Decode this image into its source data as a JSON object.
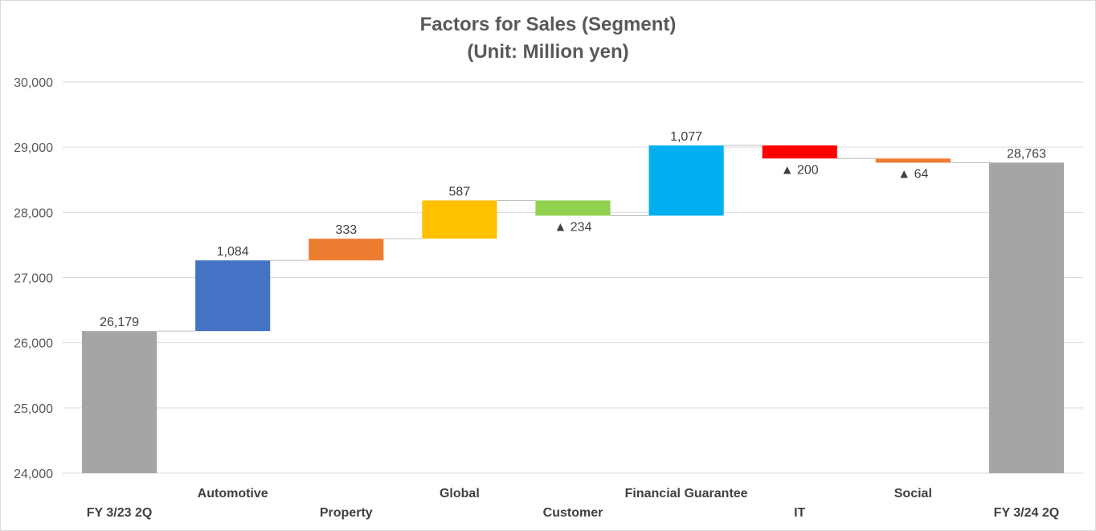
{
  "chart_data": {
    "type": "bar",
    "subtype": "waterfall",
    "title": "Factors for Sales (Segment)",
    "subtitle": "(Unit: Million yen)",
    "categories": [
      "FY 3/23 2Q",
      "Automotive",
      "Property",
      "Global",
      "Customer",
      "Financial Guarantee",
      "IT",
      "Social",
      "FY 3/24 2Q"
    ],
    "kinds": [
      "total",
      "delta",
      "delta",
      "delta",
      "delta",
      "delta",
      "delta",
      "delta",
      "total"
    ],
    "values": [
      26179,
      1084,
      333,
      587,
      -234,
      1077,
      -200,
      -64,
      28763
    ],
    "data_labels": [
      "26,179",
      "1,084",
      "333",
      "587",
      "▲ 234",
      "1,077",
      "▲ 200",
      "▲ 64",
      "28,763"
    ],
    "colors": [
      "#a5a5a5",
      "#4472c4",
      "#ed7d31",
      "#ffc000",
      "#92d050",
      "#00b0f0",
      "#ff0000",
      "#ed7d31",
      "#a5a5a5"
    ],
    "ylim": [
      24000,
      30000
    ],
    "yticks": [
      24000,
      25000,
      26000,
      27000,
      28000,
      29000,
      30000
    ],
    "ytick_labels": [
      "24,000",
      "25,000",
      "26,000",
      "27,000",
      "28,000",
      "29,000",
      "30,000"
    ],
    "grid": true,
    "legend": "none",
    "xlabel": "",
    "ylabel": ""
  }
}
